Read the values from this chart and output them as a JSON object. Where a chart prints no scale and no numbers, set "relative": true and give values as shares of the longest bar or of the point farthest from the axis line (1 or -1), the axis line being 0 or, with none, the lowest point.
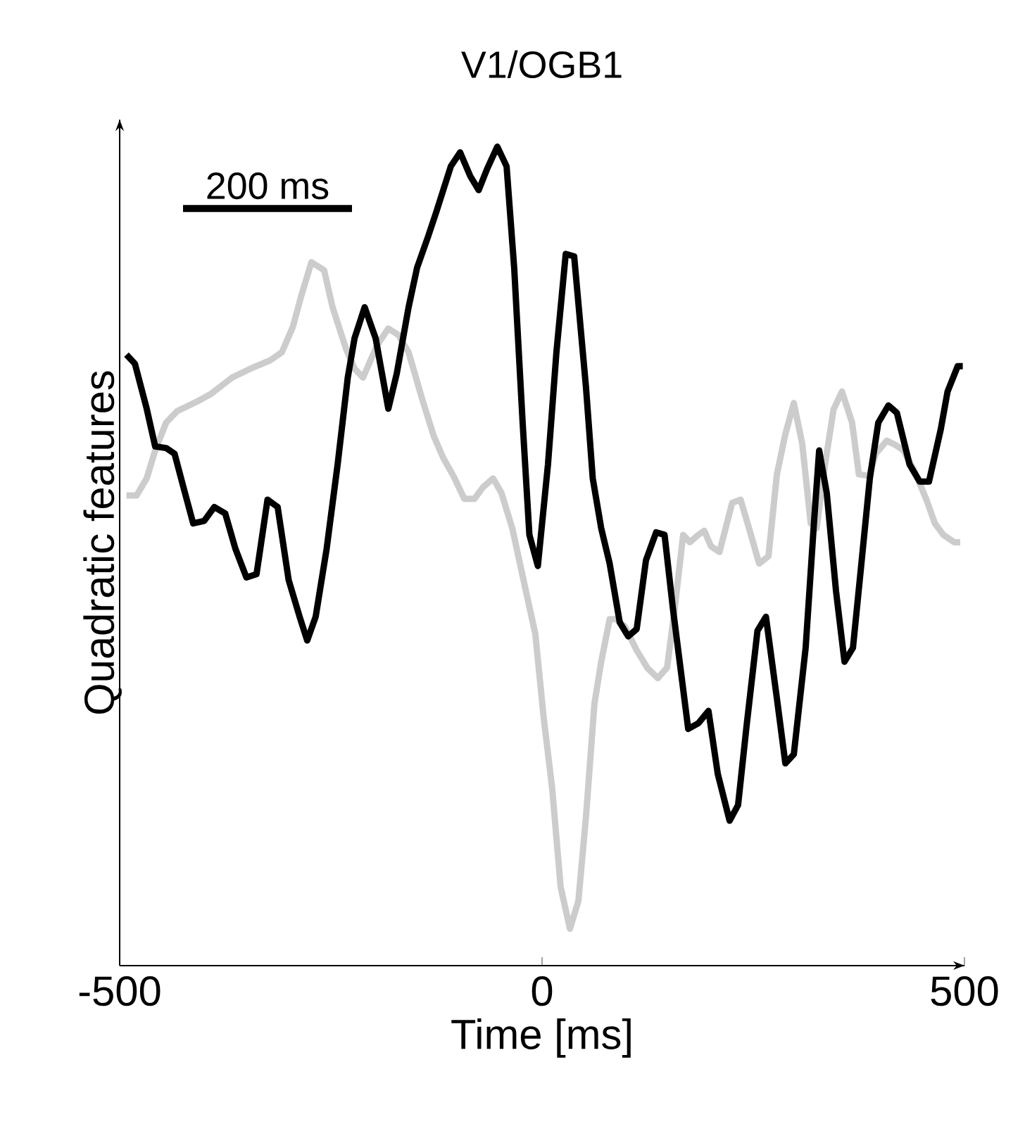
{
  "chart_data": {
    "type": "line",
    "title": "V1/OGB1",
    "xlabel": "Time [ms]",
    "ylabel": "Quadratic features",
    "relative": true,
    "xlim": [
      -500,
      500
    ],
    "xticks": [
      -500,
      0,
      500
    ],
    "annotations": [
      "200 ms"
    ],
    "series": [
      {
        "color": "#cccccc",
        "x": [
          -492,
          -480,
          -468,
          -458,
          -445,
          -432,
          -408,
          -392,
          -367,
          -345,
          -322,
          -308,
          -295,
          -285,
          -273,
          -258,
          -248,
          -232,
          -222,
          -212,
          -195,
          -182,
          -170,
          -158,
          -142,
          -128,
          -117,
          -105,
          -92,
          -80,
          -70,
          -58,
          -48,
          -35,
          -22,
          -8,
          2,
          12,
          22,
          33,
          43,
          52,
          62,
          70,
          80,
          88,
          98,
          112,
          125,
          137,
          148,
          157,
          167,
          175,
          185,
          192,
          200,
          210,
          225,
          235,
          245,
          257,
          268,
          278,
          288,
          298,
          308,
          318,
          325,
          335,
          345,
          355,
          367,
          375,
          387,
          395,
          408,
          418,
          428,
          442,
          455,
          465,
          475,
          488,
          495
        ],
        "values": [
          0.574,
          0.574,
          0.595,
          0.629,
          0.663,
          0.677,
          0.689,
          0.698,
          0.718,
          0.729,
          0.739,
          0.749,
          0.78,
          0.818,
          0.859,
          0.849,
          0.804,
          0.753,
          0.729,
          0.718,
          0.758,
          0.778,
          0.77,
          0.749,
          0.692,
          0.646,
          0.62,
          0.598,
          0.57,
          0.57,
          0.584,
          0.595,
          0.577,
          0.533,
          0.471,
          0.405,
          0.302,
          0.216,
          0.096,
          0.045,
          0.079,
          0.182,
          0.32,
          0.371,
          0.423,
          0.423,
          0.414,
          0.385,
          0.363,
          0.351,
          0.364,
          0.436,
          0.526,
          0.517,
          0.526,
          0.531,
          0.512,
          0.505,
          0.565,
          0.569,
          0.534,
          0.491,
          0.5,
          0.6,
          0.649,
          0.687,
          0.637,
          0.54,
          0.534,
          0.612,
          0.679,
          0.701,
          0.663,
          0.6,
          0.598,
          0.625,
          0.641,
          0.636,
          0.629,
          0.601,
          0.569,
          0.54,
          0.526,
          0.517,
          0.517
        ]
      },
      {
        "color": "#000000",
        "x": [
          -492,
          -482,
          -468,
          -458,
          -445,
          -435,
          -425,
          -413,
          -400,
          -388,
          -375,
          -363,
          -350,
          -338,
          -325,
          -313,
          -300,
          -287,
          -278,
          -268,
          -255,
          -242,
          -230,
          -222,
          -210,
          -197,
          -182,
          -172,
          -158,
          -148,
          -135,
          -125,
          -108,
          -97,
          -85,
          -75,
          -65,
          -53,
          -42,
          -33,
          -23,
          -15,
          -5,
          7,
          17,
          28,
          38,
          52,
          60,
          70,
          80,
          92,
          102,
          112,
          123,
          135,
          145,
          155,
          165,
          173,
          185,
          197,
          208,
          222,
          232,
          242,
          255,
          265,
          278,
          288,
          298,
          312,
          322,
          328,
          337,
          348,
          358,
          368,
          378,
          388,
          398,
          410,
          420,
          435,
          447,
          458,
          472,
          480,
          492,
          498
        ],
        "values": [
          0.746,
          0.735,
          0.68,
          0.634,
          0.632,
          0.625,
          0.586,
          0.54,
          0.543,
          0.56,
          0.552,
          0.509,
          0.474,
          0.478,
          0.569,
          0.56,
          0.471,
          0.426,
          0.397,
          0.426,
          0.509,
          0.612,
          0.718,
          0.766,
          0.804,
          0.766,
          0.68,
          0.723,
          0.804,
          0.852,
          0.89,
          0.921,
          0.976,
          0.993,
          0.964,
          0.947,
          0.973,
          1,
          0.976,
          0.852,
          0.663,
          0.526,
          0.488,
          0.612,
          0.749,
          0.869,
          0.866,
          0.706,
          0.595,
          0.534,
          0.491,
          0.419,
          0.402,
          0.411,
          0.495,
          0.529,
          0.526,
          0.435,
          0.354,
          0.289,
          0.296,
          0.311,
          0.234,
          0.177,
          0.196,
          0.292,
          0.409,
          0.426,
          0.326,
          0.247,
          0.258,
          0.388,
          0.543,
          0.629,
          0.577,
          0.457,
          0.371,
          0.388,
          0.491,
          0.595,
          0.663,
          0.684,
          0.675,
          0.612,
          0.591,
          0.591,
          0.655,
          0.701,
          0.732,
          0.732
        ]
      }
    ]
  }
}
